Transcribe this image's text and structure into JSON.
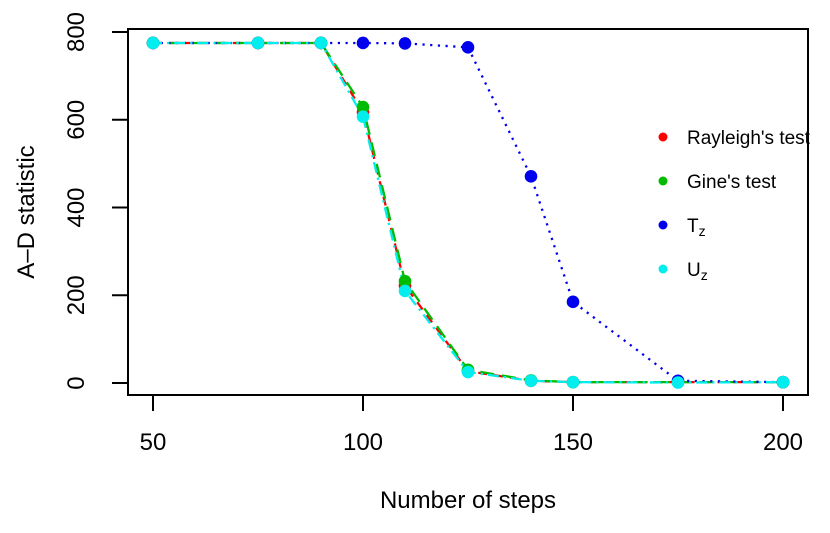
{
  "window": {
    "background": "#ffffff"
  },
  "chart_data": {
    "type": "line",
    "title": "",
    "xlabel": "Number of steps",
    "ylabel": "A–D statistic",
    "x": [
      50,
      75,
      90,
      100,
      110,
      125,
      140,
      150,
      175,
      200
    ],
    "xticks": [
      50,
      100,
      150,
      200
    ],
    "yticks": [
      0,
      200,
      400,
      600,
      800
    ],
    "xlim": [
      44,
      206
    ],
    "ylim": [
      -27,
      807
    ],
    "grid": false,
    "legend_position": "right-middle",
    "axis_color": "#000000",
    "series": [
      {
        "name": "Rayleigh's test",
        "legend_base": "Rayleigh's test",
        "legend_sub": "",
        "color": "#ff0000",
        "line_style": "dashed",
        "marker": "filled-circle",
        "values": [
          775,
          775,
          775,
          617,
          222,
          27,
          5,
          2,
          2,
          2
        ]
      },
      {
        "name": "Gine's test",
        "legend_base": "Gine's test",
        "legend_sub": "",
        "color": "#00bb00",
        "line_style": "longdash",
        "marker": "filled-circle",
        "values": [
          775,
          775,
          775,
          629,
          232,
          30,
          6,
          2,
          2,
          2
        ]
      },
      {
        "name": "Tz",
        "legend_base": "T",
        "legend_sub": "z",
        "color": "#0000ee",
        "line_style": "dotted",
        "marker": "filled-circle",
        "values": [
          775,
          775,
          775,
          775,
          774,
          765,
          471,
          185,
          5,
          2
        ]
      },
      {
        "name": "Uz",
        "legend_base": "U",
        "legend_sub": "z",
        "color": "#00eeee",
        "line_style": "dashdot",
        "marker": "filled-circle",
        "values": [
          775,
          775,
          775,
          607,
          210,
          25,
          5,
          2,
          1,
          2
        ]
      }
    ]
  }
}
